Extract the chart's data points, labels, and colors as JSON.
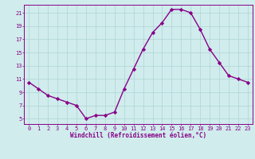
{
  "hours": [
    0,
    1,
    2,
    3,
    4,
    5,
    6,
    7,
    8,
    9,
    10,
    11,
    12,
    13,
    14,
    15,
    16,
    17,
    18,
    19,
    20,
    21,
    22,
    23
  ],
  "values": [
    10.5,
    9.5,
    8.5,
    8.0,
    7.5,
    7.0,
    5.0,
    5.5,
    5.5,
    6.0,
    9.5,
    12.5,
    15.5,
    18.0,
    19.5,
    21.5,
    21.5,
    21.0,
    18.5,
    15.5,
    13.5,
    11.5,
    11.0,
    10.5
  ],
  "line_color": "#880088",
  "marker": "D",
  "marker_size": 2.2,
  "bg_color": "#d0ecec",
  "grid_color": "#aed4d4",
  "xlabel": "Windchill (Refroidissement éolien,°C)",
  "xlim": [
    -0.5,
    23.5
  ],
  "ylim": [
    4.2,
    22.2
  ],
  "yticks": [
    5,
    7,
    9,
    11,
    13,
    15,
    17,
    19,
    21
  ],
  "xticks": [
    0,
    1,
    2,
    3,
    4,
    5,
    6,
    7,
    8,
    9,
    10,
    11,
    12,
    13,
    14,
    15,
    16,
    17,
    18,
    19,
    20,
    21,
    22,
    23
  ],
  "tick_fontsize": 5.0,
  "xlabel_fontsize": 5.5,
  "line_width": 1.0
}
